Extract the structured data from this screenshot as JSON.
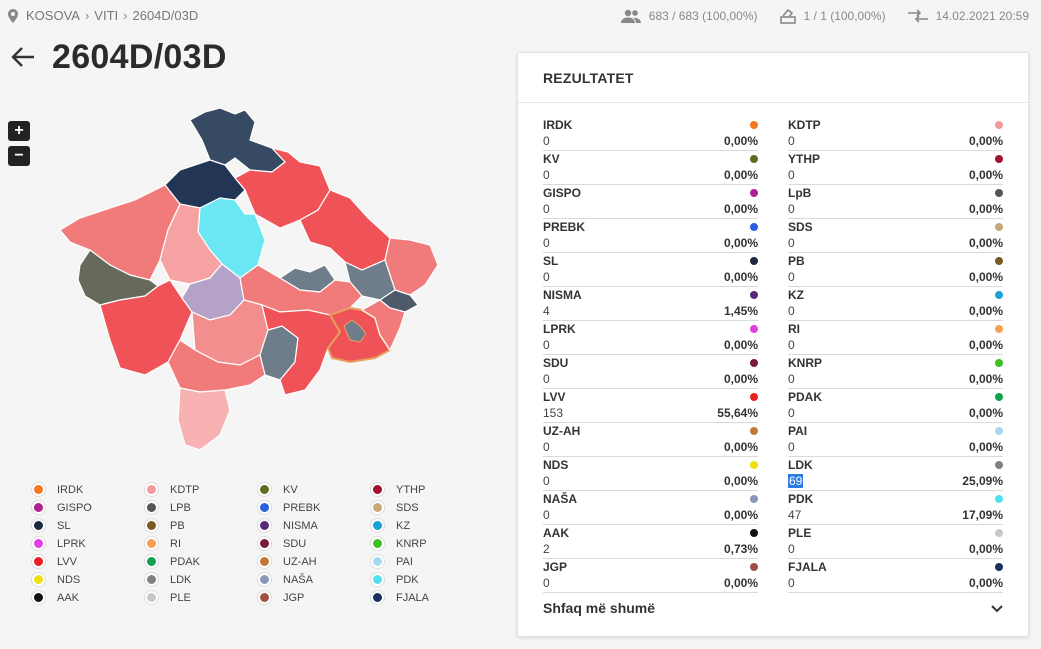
{
  "breadcrumb": [
    "KOSOVA",
    "VITI",
    "2604D/03D"
  ],
  "stats": {
    "voters": "683 / 683 (100,00%)",
    "stations": "1 / 1 (100,00%)",
    "updated": "14.02.2021 20:59"
  },
  "page_title": "2604D/03D",
  "zoom": {
    "in": "+",
    "out": "−"
  },
  "icons": {
    "location": "location-pin-icon",
    "voters": "people-icon",
    "stations": "ballot-box-icon",
    "updated": "sync-arrows-icon",
    "back": "arrow-left-icon",
    "expand": "chevron-down-icon"
  },
  "panel_title": "REZULTATET",
  "results": [
    {
      "name": "IRDK",
      "votes": "0",
      "pct": "0,00%",
      "color": "#f47820"
    },
    {
      "name": "KDTP",
      "votes": "0",
      "pct": "0,00%",
      "color": "#f49a9a"
    },
    {
      "name": "KV",
      "votes": "0",
      "pct": "0,00%",
      "color": "#5c6e1f"
    },
    {
      "name": "YTHP",
      "votes": "0",
      "pct": "0,00%",
      "color": "#a01030"
    },
    {
      "name": "GISPO",
      "votes": "0",
      "pct": "0,00%",
      "color": "#b0218f"
    },
    {
      "name": "LpB",
      "votes": "0",
      "pct": "0,00%",
      "color": "#555555"
    },
    {
      "name": "PREBK",
      "votes": "0",
      "pct": "0,00%",
      "color": "#2a5fe0"
    },
    {
      "name": "SDS",
      "votes": "0",
      "pct": "0,00%",
      "color": "#c8a878"
    },
    {
      "name": "SL",
      "votes": "0",
      "pct": "0,00%",
      "color": "#1a2a40"
    },
    {
      "name": "PB",
      "votes": "0",
      "pct": "0,00%",
      "color": "#7a5a20"
    },
    {
      "name": "NISMA",
      "votes": "4",
      "pct": "1,45%",
      "color": "#5a2a7a"
    },
    {
      "name": "KZ",
      "votes": "0",
      "pct": "0,00%",
      "color": "#1aa0d8"
    },
    {
      "name": "LPRK",
      "votes": "0",
      "pct": "0,00%",
      "color": "#e040e0"
    },
    {
      "name": "RI",
      "votes": "0",
      "pct": "0,00%",
      "color": "#f8a050"
    },
    {
      "name": "SDU",
      "votes": "0",
      "pct": "0,00%",
      "color": "#7a1a3a"
    },
    {
      "name": "KNRP",
      "votes": "0",
      "pct": "0,00%",
      "color": "#40c020"
    },
    {
      "name": "LVV",
      "votes": "153",
      "pct": "55,64%",
      "color": "#e82020"
    },
    {
      "name": "PDAK",
      "votes": "0",
      "pct": "0,00%",
      "color": "#10a050"
    },
    {
      "name": "UZ-AH",
      "votes": "0",
      "pct": "0,00%",
      "color": "#c07838"
    },
    {
      "name": "PAI",
      "votes": "0",
      "pct": "0,00%",
      "color": "#a8d8f0"
    },
    {
      "name": "NDS",
      "votes": "0",
      "pct": "0,00%",
      "color": "#f0e010"
    },
    {
      "name": "LDK",
      "votes": "69",
      "pct": "25,09%",
      "color": "#808080",
      "selected": true
    },
    {
      "name": "NAŠA",
      "votes": "0",
      "pct": "0,00%",
      "color": "#8898b8"
    },
    {
      "name": "PDK",
      "votes": "47",
      "pct": "17,09%",
      "color": "#50e0f0"
    },
    {
      "name": "AAK",
      "votes": "2",
      "pct": "0,73%",
      "color": "#111111"
    },
    {
      "name": "PLE",
      "votes": "0",
      "pct": "0,00%",
      "color": "#c8c8c8"
    },
    {
      "name": "JGP",
      "votes": "0",
      "pct": "0,00%",
      "color": "#a05040"
    },
    {
      "name": "FJALA",
      "votes": "0",
      "pct": "0,00%",
      "color": "#1a3060"
    }
  ],
  "show_more": "Shfaq më shumë",
  "legend": [
    {
      "name": "IRDK",
      "color": "#f47820"
    },
    {
      "name": "KDTP",
      "color": "#f49a9a"
    },
    {
      "name": "KV",
      "color": "#5c6e1f"
    },
    {
      "name": "YTHP",
      "color": "#a01030"
    },
    {
      "name": "GISPO",
      "color": "#b0218f"
    },
    {
      "name": "LPB",
      "color": "#555555"
    },
    {
      "name": "PREBK",
      "color": "#2a5fe0"
    },
    {
      "name": "SDS",
      "color": "#c8a878"
    },
    {
      "name": "SL",
      "color": "#1a2a40"
    },
    {
      "name": "PB",
      "color": "#7a5a20"
    },
    {
      "name": "NISMA",
      "color": "#5a2a7a"
    },
    {
      "name": "KZ",
      "color": "#1aa0d8"
    },
    {
      "name": "LPRK",
      "color": "#e040e0"
    },
    {
      "name": "RI",
      "color": "#f8a050"
    },
    {
      "name": "SDU",
      "color": "#7a1a3a"
    },
    {
      "name": "KNRP",
      "color": "#40c020"
    },
    {
      "name": "LVV",
      "color": "#e82020"
    },
    {
      "name": "PDAK",
      "color": "#10a050"
    },
    {
      "name": "UZ-AH",
      "color": "#c07838"
    },
    {
      "name": "PAI",
      "color": "#a8d8f0"
    },
    {
      "name": "NDS",
      "color": "#f0e010"
    },
    {
      "name": "LDK",
      "color": "#808080"
    },
    {
      "name": "NAŠA",
      "color": "#8898b8"
    },
    {
      "name": "PDK",
      "color": "#50e0f0"
    },
    {
      "name": "AAK",
      "color": "#111111"
    },
    {
      "name": "PLE",
      "color": "#c8c8c8"
    },
    {
      "name": "JGP",
      "color": "#a05040"
    },
    {
      "name": "FJALA",
      "color": "#1a3060"
    }
  ]
}
